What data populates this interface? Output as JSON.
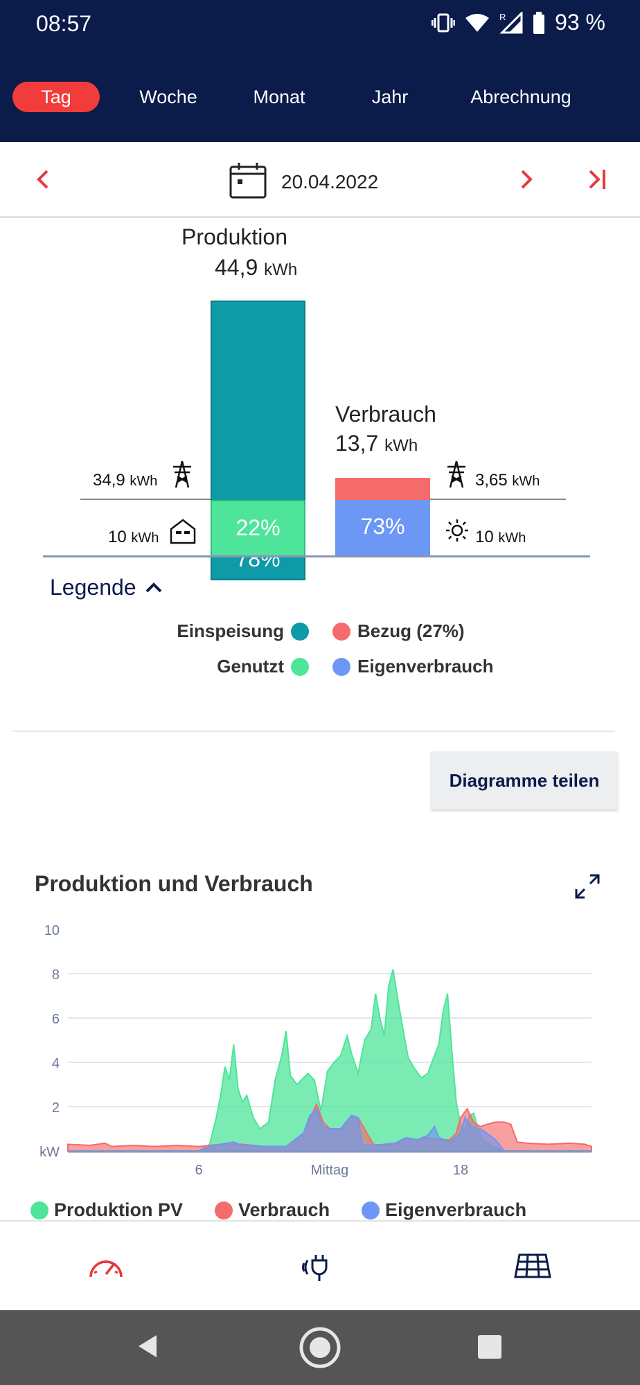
{
  "status_bar": {
    "time": "08:57",
    "battery": "93 %"
  },
  "tabs": [
    {
      "label": "Tag",
      "active": true
    },
    {
      "label": "Woche",
      "active": false
    },
    {
      "label": "Monat",
      "active": false
    },
    {
      "label": "Jahr",
      "active": false
    },
    {
      "label": "Abrechnung",
      "active": false
    }
  ],
  "date_nav": {
    "date": "20.04.2022"
  },
  "summary": {
    "production": {
      "title": "Produktion",
      "value": "44,9",
      "unit": "kWh",
      "einspeisung_pct": "78%",
      "genutzt_pct": "22%"
    },
    "consumption": {
      "title": "Verbrauch",
      "value": "13,7",
      "unit": "kWh",
      "eigenverbrauch_pct": "73%"
    },
    "left_top": {
      "value": "34,9",
      "unit": "kWh"
    },
    "left_bottom": {
      "value": "10",
      "unit": "kWh"
    },
    "right_top": {
      "value": "3,65",
      "unit": "kWh"
    },
    "right_bottom": {
      "value": "10",
      "unit": "kWh"
    }
  },
  "legend": {
    "title": "Legende",
    "items": [
      {
        "label": "Einspeisung",
        "color": "#0e9aa7"
      },
      {
        "label": "Bezug (27%)",
        "color": "#f56b6b"
      },
      {
        "label": "Genutzt",
        "color": "#4ee59a"
      },
      {
        "label": "Eigenverbrauch",
        "color": "#6c97f5"
      }
    ]
  },
  "share_button": "Diagramme teilen",
  "chart_title": "Produktion und Verbrauch",
  "chart_data": {
    "type": "area",
    "x_unit": "hour",
    "xlim": [
      0,
      24
    ],
    "ylim": [
      0,
      10
    ],
    "ylabel": "kW",
    "y_ticks": [
      "10",
      "8",
      "6",
      "4",
      "2"
    ],
    "x_ticks": [
      {
        "x": 6,
        "label": "6"
      },
      {
        "x": 12,
        "label": "Mittag"
      },
      {
        "x": 18,
        "label": "18"
      }
    ],
    "grid": true,
    "legend_position": "bottom",
    "series": [
      {
        "name": "Produktion PV",
        "color": "#4ee59a",
        "points": [
          [
            0,
            0
          ],
          [
            6,
            0
          ],
          [
            6.5,
            0.3
          ],
          [
            6.8,
            1.5
          ],
          [
            7.0,
            2.5
          ],
          [
            7.2,
            3.8
          ],
          [
            7.4,
            3.2
          ],
          [
            7.6,
            4.8
          ],
          [
            7.8,
            2.8
          ],
          [
            8.0,
            2.2
          ],
          [
            8.2,
            2.5
          ],
          [
            8.5,
            1.5
          ],
          [
            8.8,
            1.0
          ],
          [
            9.2,
            1.3
          ],
          [
            9.5,
            3.2
          ],
          [
            9.8,
            4.3
          ],
          [
            10.0,
            5.4
          ],
          [
            10.2,
            3.4
          ],
          [
            10.5,
            3.0
          ],
          [
            10.8,
            3.3
          ],
          [
            11.0,
            3.5
          ],
          [
            11.3,
            3.2
          ],
          [
            11.6,
            1.8
          ],
          [
            11.9,
            3.6
          ],
          [
            12.2,
            4.0
          ],
          [
            12.5,
            4.3
          ],
          [
            12.8,
            5.2
          ],
          [
            13.0,
            4.4
          ],
          [
            13.3,
            3.5
          ],
          [
            13.6,
            5.0
          ],
          [
            13.9,
            5.5
          ],
          [
            14.1,
            7.1
          ],
          [
            14.3,
            6.0
          ],
          [
            14.5,
            5.2
          ],
          [
            14.7,
            7.4
          ],
          [
            14.9,
            8.2
          ],
          [
            15.1,
            7.0
          ],
          [
            15.3,
            5.8
          ],
          [
            15.6,
            4.2
          ],
          [
            15.9,
            3.7
          ],
          [
            16.2,
            3.3
          ],
          [
            16.5,
            3.5
          ],
          [
            16.8,
            4.3
          ],
          [
            17.0,
            4.8
          ],
          [
            17.2,
            6.3
          ],
          [
            17.4,
            7.1
          ],
          [
            17.6,
            4.5
          ],
          [
            17.8,
            2.2
          ],
          [
            18.0,
            1.2
          ],
          [
            18.2,
            0.8
          ],
          [
            18.4,
            1.6
          ],
          [
            18.6,
            1.7
          ],
          [
            18.8,
            1.0
          ],
          [
            19.0,
            0.5
          ],
          [
            19.5,
            0.2
          ],
          [
            20,
            0
          ],
          [
            24,
            0
          ]
        ]
      },
      {
        "name": "Verbrauch",
        "color": "#f56b6b",
        "points": [
          [
            0,
            0.3
          ],
          [
            1,
            0.25
          ],
          [
            1.7,
            0.35
          ],
          [
            2,
            0.2
          ],
          [
            3,
            0.25
          ],
          [
            4,
            0.2
          ],
          [
            5,
            0.25
          ],
          [
            6,
            0.2
          ],
          [
            7,
            0.3
          ],
          [
            8,
            0.3
          ],
          [
            9,
            0.2
          ],
          [
            10,
            0.2
          ],
          [
            10.8,
            0.8
          ],
          [
            11.1,
            1.5
          ],
          [
            11.4,
            2.1
          ],
          [
            11.7,
            1.3
          ],
          [
            12,
            1.0
          ],
          [
            12.5,
            1.0
          ],
          [
            13,
            1.6
          ],
          [
            13.3,
            1.5
          ],
          [
            14,
            0.3
          ],
          [
            14.5,
            0.25
          ],
          [
            15,
            0.3
          ],
          [
            15.5,
            0.6
          ],
          [
            16,
            0.5
          ],
          [
            16.5,
            0.6
          ],
          [
            17,
            0.5
          ],
          [
            17.5,
            0.5
          ],
          [
            17.8,
            0.8
          ],
          [
            18.0,
            1.5
          ],
          [
            18.3,
            1.9
          ],
          [
            18.6,
            1.3
          ],
          [
            18.9,
            1.1
          ],
          [
            19.2,
            1.2
          ],
          [
            19.6,
            1.3
          ],
          [
            20,
            1.3
          ],
          [
            20.3,
            1.2
          ],
          [
            20.6,
            0.4
          ],
          [
            21,
            0.35
          ],
          [
            22,
            0.3
          ],
          [
            23,
            0.35
          ],
          [
            23.7,
            0.3
          ],
          [
            24,
            0.2
          ]
        ]
      },
      {
        "name": "Eigenverbrauch",
        "color": "#6c97f5",
        "points": [
          [
            0,
            0
          ],
          [
            6,
            0
          ],
          [
            6.5,
            0.2
          ],
          [
            7,
            0.3
          ],
          [
            7.6,
            0.4
          ],
          [
            8,
            0.25
          ],
          [
            9,
            0.2
          ],
          [
            10,
            0.2
          ],
          [
            10.8,
            0.8
          ],
          [
            11.1,
            1.6
          ],
          [
            11.4,
            1.9
          ],
          [
            11.7,
            1.1
          ],
          [
            12,
            1.0
          ],
          [
            12.5,
            1.0
          ],
          [
            13,
            1.6
          ],
          [
            13.3,
            1.5
          ],
          [
            13.5,
            0.3
          ],
          [
            14,
            0.25
          ],
          [
            14.5,
            0.3
          ],
          [
            15,
            0.35
          ],
          [
            15.5,
            0.6
          ],
          [
            16,
            0.5
          ],
          [
            16.5,
            0.7
          ],
          [
            16.8,
            1.1
          ],
          [
            17,
            0.6
          ],
          [
            17.5,
            0.4
          ],
          [
            18,
            0.8
          ],
          [
            18.2,
            1.5
          ],
          [
            18.5,
            1.1
          ],
          [
            18.9,
            1.0
          ],
          [
            19.2,
            0.8
          ],
          [
            19.6,
            0.5
          ],
          [
            20,
            0
          ],
          [
            24,
            0
          ]
        ]
      }
    ]
  },
  "chart_legend": [
    {
      "label": "Produktion PV",
      "color": "#4ee59a"
    },
    {
      "label": "Verbrauch",
      "color": "#f56b6b"
    },
    {
      "label": "Eigenverbrauch",
      "color": "#6c97f5"
    }
  ],
  "icons": {
    "dashboard": "speedometer-icon",
    "plug": "plug-icon",
    "solar": "solar-panel-icon"
  }
}
